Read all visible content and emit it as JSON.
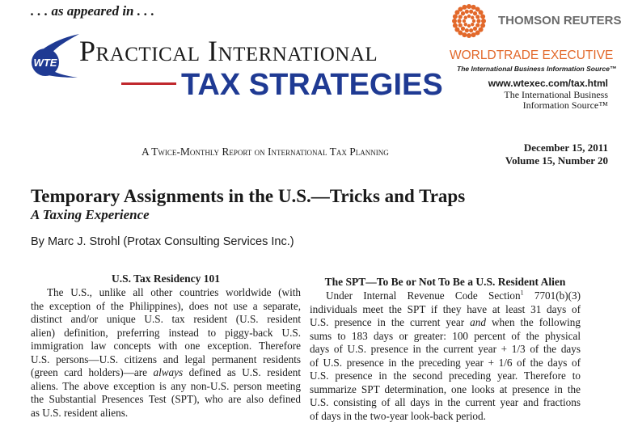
{
  "header": {
    "tagline": ". . . as appeared in . . .",
    "logo_mark": "WTE",
    "title_line1": "Practical International",
    "title_line2": "TAX STRATEGIES",
    "publisher": "THOMSON REUTERS",
    "brand": "WORLDTRADE EXECUTIVE",
    "brand_tagline": "The International Business Information Source™",
    "url": "www.wtexec.com/tax.html",
    "source_line1": "The International Business",
    "source_line2": "Information Source™",
    "report": "A Twice-Monthly Report on International Tax Planning",
    "date": "December 15, 2011",
    "volume": "Volume 15, Number 20"
  },
  "article": {
    "title": "Temporary Assignments in the U.S.—Tricks and Traps",
    "subtitle": "A Taxing Experience",
    "byline": "By Marc J. Strohl (Protax Consulting Services Inc.)",
    "columns": [
      {
        "heading": "U.S. Tax Residency 101",
        "lines": [
          "The U.S., unlike all other countries worldwide (with",
          "the exception of the Philippines), does not use a separate,",
          "distinct and/or unique U.S. tax resident (U.S. resident",
          "alien) definition, preferring instead to piggy-back U.S.",
          "immigration law concepts with one exception. Therefore",
          "U.S. persons—U.S. citizens and legal permanent residents",
          [
            "(green card holders)—are ",
            "always",
            " defined as U.S. resident"
          ],
          "aliens. The above exception is any non-U.S. person meeting",
          "the Substantial Presences Test (SPT), who are also defined",
          "as U.S. resident aliens."
        ]
      },
      {
        "heading": "The SPT—To Be or Not To Be a U.S. Resident Alien",
        "lines": [
          [
            "Under Internal Revenue Code Section",
            "1",
            " 7701(b)(3)"
          ],
          "individuals meet the SPT if they have at least 31 days of",
          [
            "U.S. presence in the current year ",
            "and",
            " when the following"
          ],
          "sums to 183 days or greater: 100 percent of the physical",
          "days of U.S. presence in the current year + 1/3 of the days",
          "of U.S. presence in the preceding year + 1/6 of the days of",
          "U.S. presence in the second preceding year. Therefore to",
          "summarize SPT determination, one looks at presence in the",
          "U.S. consisting of all days in the current year and fractions",
          "of days in the two-year look-back period."
        ]
      }
    ]
  }
}
